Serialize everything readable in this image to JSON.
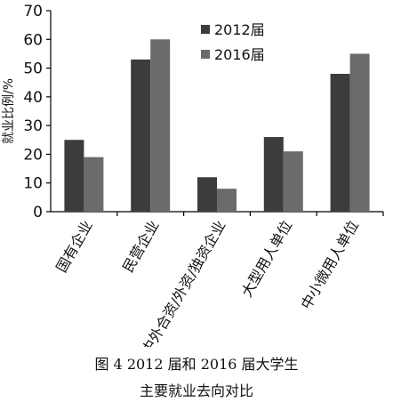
{
  "caption": {
    "line1": "图 4   2012 届和 2016 届大学生",
    "line2": "主要就业去向对比"
  },
  "chart_data": {
    "type": "bar",
    "title": "",
    "xlabel": "",
    "ylabel": "就业比例/%",
    "ylim": [
      0,
      70
    ],
    "yticks": [
      0,
      10,
      20,
      30,
      40,
      50,
      60,
      70
    ],
    "grid": false,
    "legend_position": "top-right",
    "categories": [
      "国有企业",
      "民营企业",
      "中外合资/外资/独资企业",
      "大型用人单位",
      "中小微用人单位"
    ],
    "series": [
      {
        "name": "2012届",
        "color": "#3c3c3c",
        "values": [
          25,
          53,
          12,
          26,
          48
        ]
      },
      {
        "name": "2016届",
        "color": "#6b6b6b",
        "values": [
          19,
          60,
          8,
          21,
          55
        ]
      }
    ]
  }
}
